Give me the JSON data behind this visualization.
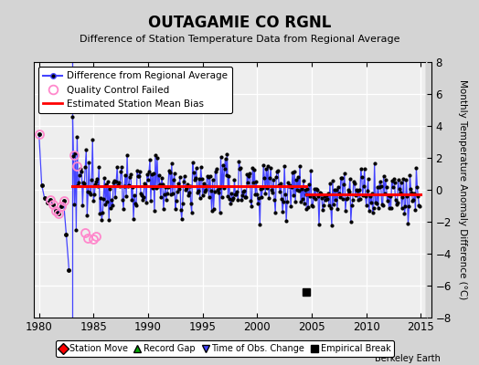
{
  "title": "OUTAGAMIE CO RGNL",
  "subtitle": "Difference of Station Temperature Data from Regional Average",
  "ylabel_right": "Monthly Temperature Anomaly Difference (°C)",
  "xlim": [
    1979.5,
    2015.5
  ],
  "ylim": [
    -8,
    8
  ],
  "yticks": [
    -8,
    -6,
    -4,
    -2,
    0,
    2,
    4,
    6,
    8
  ],
  "xticks": [
    1980,
    1985,
    1990,
    1995,
    2000,
    2005,
    2010,
    2015
  ],
  "fig_bg_color": "#d4d4d4",
  "plot_bg_color": "#eeeeee",
  "grid_color": "#ffffff",
  "line_color": "#4444ff",
  "dot_color": "#000000",
  "qc_color": "#ff88cc",
  "bias_color": "red",
  "segment1_bias": 0.22,
  "segment2_bias": -0.28,
  "segment1_start": 1983.08,
  "segment1_end": 2004.5,
  "segment2_start": 2004.5,
  "segment2_end": 2015.0,
  "early_gap_x": 1983.08,
  "empirical_break_x": 2004.5,
  "empirical_break_y": -6.4,
  "time_of_obs_x": 1983.08
}
